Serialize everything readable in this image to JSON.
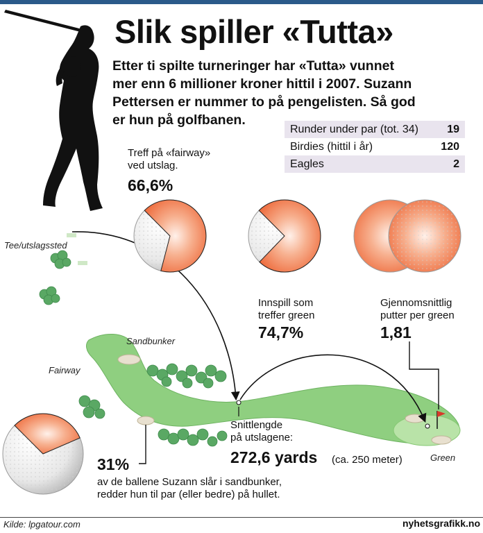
{
  "header": {
    "title": "Slik spiller «Tutta»",
    "intro_lines": [
      "Etter ti spilte turneringer har «Tutta» vunnet",
      "mer enn 6 millioner kroner hittil i 2007. Suzann",
      "Pettersen er nummer to på pengelisten. Så god",
      "er hun på golfbanen."
    ]
  },
  "stats": [
    {
      "label": "Runder under par (tot. 34)",
      "value": "19"
    },
    {
      "label": "Birdies (hittil i år)",
      "value": "120"
    },
    {
      "label": "Eagles",
      "value": "2"
    }
  ],
  "fairway_hits": {
    "label_lines": [
      "Treff på «fairway»",
      "ved utslag."
    ],
    "value": "66,6%",
    "fraction": 0.666
  },
  "greens_in_regulation": {
    "label_lines": [
      "Innspill som",
      "treffer green"
    ],
    "value": "74,7%",
    "fraction": 0.747
  },
  "putts_per_green": {
    "label_lines": [
      "Gjennomsnittlig",
      "putter per green"
    ],
    "value": "1,81"
  },
  "driving": {
    "label_lines": [
      "Snittlengde",
      "på utslagene:"
    ],
    "value": "272,6 yards",
    "note": "(ca. 250 meter)"
  },
  "sand_saves": {
    "value": "31%",
    "fraction": 0.31,
    "text_lines": [
      "av de ballene Suzann slår i sandbunker,",
      "redder hun til par (eller bedre) på hullet."
    ]
  },
  "course_labels": {
    "tee": "Tee/utslagssted",
    "sandbunker": "Sandbunker",
    "fairway": "Fairway",
    "green": "Green"
  },
  "footer": {
    "source": "Kilde: lpgatour.com",
    "brand": "nyhetsgrafikk.no"
  },
  "colors": {
    "fairway": "#8fcf80",
    "green": "#b9e3a8",
    "bushes": "#5aa864",
    "ball_fill": "#f2845c",
    "accent_bar": "#2b5a8a"
  }
}
